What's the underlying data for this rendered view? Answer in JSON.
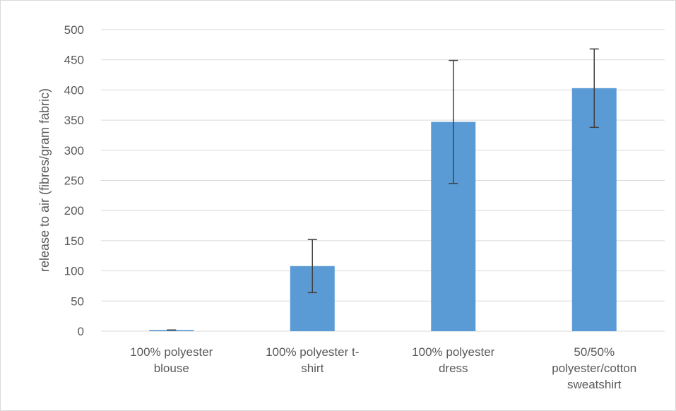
{
  "chart_data": {
    "type": "bar",
    "title": "",
    "xlabel": "",
    "ylabel": "release to air (fibres/gram fabric)",
    "categories": [
      [
        "100% polyester",
        "blouse"
      ],
      [
        "100% polyester t-",
        "shirt"
      ],
      [
        "100% polyester",
        "dress"
      ],
      [
        "50/50%",
        "polyester/cotton",
        "sweatshirt"
      ]
    ],
    "values": [
      2,
      108,
      347,
      403
    ],
    "error_low": [
      2,
      64,
      245,
      338
    ],
    "error_high": [
      2,
      152,
      449,
      468
    ],
    "ylim": [
      0,
      500
    ],
    "yticks": [
      0,
      50,
      100,
      150,
      200,
      250,
      300,
      350,
      400,
      450,
      500
    ],
    "grid": true,
    "legend": "none",
    "bar_color": "#5b9bd5",
    "error_bar_color": "#404040",
    "gridline_color": "#d9d9d9",
    "text_color": "#595959"
  }
}
